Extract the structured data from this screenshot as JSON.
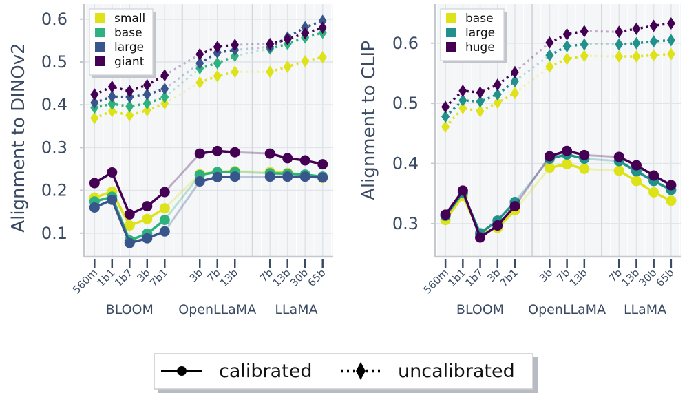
{
  "chart_data": [
    {
      "type": "line",
      "ylabel": "Alignment to DINOv2",
      "ylim": [
        0.045,
        0.635
      ],
      "yticks": [
        0.1,
        0.2,
        0.3,
        0.4,
        0.5,
        0.6
      ],
      "ytick_labels": [
        "0.1",
        "0.2",
        "0.3",
        "0.4",
        "0.5",
        "0.6"
      ],
      "xlim": [
        -0.6,
        13.6
      ],
      "x": [
        0,
        1,
        2,
        3,
        4,
        6,
        7,
        8,
        10,
        11,
        12,
        13
      ],
      "xtick_labels": [
        "560m",
        "1b1",
        "1b7",
        "3b",
        "7b1",
        "3b",
        "7b",
        "13b",
        "7b",
        "13b",
        "30b",
        "65b"
      ],
      "family_labels": [
        {
          "label": "BLOOM",
          "x": 2
        },
        {
          "label": "OpenLLaMA",
          "x": 7
        },
        {
          "label": "LLaMA",
          "x": 11.5
        }
      ],
      "family_separators": [
        5,
        9
      ],
      "segments": [
        [
          0,
          4
        ],
        [
          5,
          7
        ],
        [
          8,
          11
        ]
      ],
      "series": [
        {
          "name": "small",
          "color": "#dde318",
          "calibrated": [
            0.183,
            0.197,
            0.118,
            0.133,
            0.158,
            0.238,
            0.243,
            0.245,
            0.243,
            0.241,
            0.236,
            0.229
          ],
          "uncalibrated": [
            0.369,
            0.385,
            0.375,
            0.387,
            0.403,
            0.452,
            0.467,
            0.477,
            0.477,
            0.489,
            0.502,
            0.511
          ]
        },
        {
          "name": "base",
          "color": "#2db27d",
          "calibrated": [
            0.174,
            0.185,
            0.083,
            0.099,
            0.131,
            0.236,
            0.243,
            0.243,
            0.24,
            0.239,
            0.237,
            0.232
          ],
          "uncalibrated": [
            0.393,
            0.402,
            0.396,
            0.403,
            0.418,
            0.485,
            0.497,
            0.514,
            0.531,
            0.542,
            0.557,
            0.568
          ]
        },
        {
          "name": "large",
          "color": "#39568c",
          "calibrated": [
            0.16,
            0.178,
            0.077,
            0.088,
            0.104,
            0.221,
            0.231,
            0.232,
            0.232,
            0.232,
            0.232,
            0.23
          ],
          "uncalibrated": [
            0.405,
            0.419,
            0.418,
            0.424,
            0.437,
            0.497,
            0.522,
            0.528,
            0.535,
            0.557,
            0.581,
            0.596
          ]
        },
        {
          "name": "giant",
          "color": "#440154",
          "calibrated": [
            0.217,
            0.242,
            0.144,
            0.163,
            0.196,
            0.286,
            0.292,
            0.289,
            0.286,
            0.275,
            0.27,
            0.261
          ],
          "uncalibrated": [
            0.424,
            0.442,
            0.432,
            0.446,
            0.469,
            0.518,
            0.535,
            0.54,
            0.542,
            0.553,
            0.567,
            0.58
          ]
        }
      ]
    },
    {
      "type": "line",
      "ylabel": "Alignment to CLIP",
      "ylim": [
        0.245,
        0.665
      ],
      "yticks": [
        0.3,
        0.4,
        0.5,
        0.6
      ],
      "ytick_labels": [
        "0.3",
        "0.4",
        "0.5",
        "0.6"
      ],
      "xlim": [
        -0.6,
        13.6
      ],
      "x": [
        0,
        1,
        2,
        3,
        4,
        6,
        7,
        8,
        10,
        11,
        12,
        13
      ],
      "xtick_labels": [
        "560m",
        "1b1",
        "1b7",
        "3b",
        "7b1",
        "3b",
        "7b",
        "13b",
        "7b",
        "13b",
        "30b",
        "65b"
      ],
      "family_labels": [
        {
          "label": "BLOOM",
          "x": 2
        },
        {
          "label": "OpenLLaMA",
          "x": 7
        },
        {
          "label": "LLaMA",
          "x": 11.5
        }
      ],
      "family_separators": [
        5,
        9
      ],
      "segments": [
        [
          0,
          4
        ],
        [
          5,
          7
        ],
        [
          8,
          11
        ]
      ],
      "series": [
        {
          "name": "base",
          "color": "#dde318",
          "calibrated": [
            0.306,
            0.346,
            0.283,
            0.293,
            0.322,
            0.393,
            0.399,
            0.391,
            0.388,
            0.371,
            0.352,
            0.338
          ],
          "uncalibrated": [
            0.461,
            0.492,
            0.487,
            0.501,
            0.517,
            0.561,
            0.574,
            0.579,
            0.578,
            0.578,
            0.58,
            0.582
          ]
        },
        {
          "name": "large",
          "color": "#21918c",
          "calibrated": [
            0.313,
            0.351,
            0.284,
            0.305,
            0.336,
            0.408,
            0.415,
            0.408,
            0.404,
            0.387,
            0.371,
            0.356
          ],
          "uncalibrated": [
            0.478,
            0.505,
            0.503,
            0.515,
            0.537,
            0.58,
            0.595,
            0.598,
            0.598,
            0.6,
            0.603,
            0.605
          ]
        },
        {
          "name": "huge",
          "color": "#440154",
          "calibrated": [
            0.315,
            0.355,
            0.277,
            0.297,
            0.329,
            0.412,
            0.421,
            0.414,
            0.411,
            0.397,
            0.38,
            0.364
          ],
          "uncalibrated": [
            0.494,
            0.521,
            0.518,
            0.531,
            0.552,
            0.601,
            0.615,
            0.62,
            0.619,
            0.624,
            0.629,
            0.633
          ]
        }
      ]
    }
  ],
  "bottom_legend": {
    "calibrated_label": "calibrated",
    "uncalibrated_label": "uncalibrated"
  }
}
